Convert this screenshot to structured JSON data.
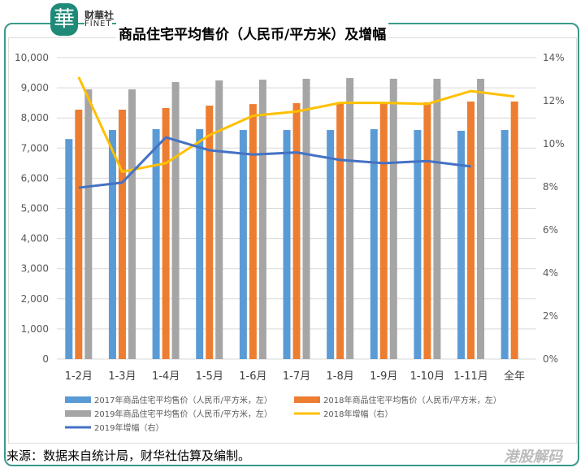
{
  "logo": {
    "mark": "華",
    "cn": "财華社",
    "en": "FINET"
  },
  "chart_data": {
    "type": "bar",
    "title": "商品住宅平均售价（人民币/平方米）及增幅",
    "categories": [
      "1-2月",
      "1-3月",
      "1-4月",
      "1-5月",
      "1-6月",
      "1-7月",
      "1-8月",
      "1-9月",
      "1-10月",
      "1-11月",
      "全年"
    ],
    "y_left": {
      "range": [
        0,
        10000
      ],
      "ticks": [
        "0",
        "1,000",
        "2,000",
        "3,000",
        "4,000",
        "5,000",
        "6,000",
        "7,000",
        "8,000",
        "9,000",
        "10,000"
      ]
    },
    "y_right": {
      "range": [
        0,
        14
      ],
      "ticks": [
        "0%",
        "2%",
        "4%",
        "6%",
        "8%",
        "10%",
        "12%",
        "14%"
      ]
    },
    "grid": true,
    "legend_position": "bottom",
    "series": [
      {
        "name": "2017年商品住宅平均售价（人民币/平方米，左）",
        "kind": "bar",
        "axis": "left",
        "color": "#5b9bd5",
        "values": [
          7300,
          7600,
          7630,
          7630,
          7600,
          7600,
          7600,
          7630,
          7600,
          7575,
          7600
        ]
      },
      {
        "name": "2018年商品住宅平均售价（人民币/平方米，左）",
        "kind": "bar",
        "axis": "left",
        "color": "#ed7d31",
        "values": [
          8275,
          8275,
          8330,
          8410,
          8460,
          8490,
          8520,
          8520,
          8520,
          8545,
          8545
        ]
      },
      {
        "name": "2019年商品住宅平均售价（人民币/平方米，左）",
        "kind": "bar",
        "axis": "left",
        "color": "#a5a5a5",
        "values": [
          8950,
          8950,
          9190,
          9245,
          9270,
          9300,
          9325,
          9300,
          9300,
          9300,
          null
        ]
      },
      {
        "name": "2018年增幅（右）",
        "kind": "line",
        "axis": "right",
        "color": "#ffc000",
        "values": [
          13.1,
          8.7,
          9.1,
          10.4,
          11.3,
          11.5,
          11.9,
          11.9,
          11.85,
          12.45,
          12.2
        ]
      },
      {
        "name": "2019年增幅（右）",
        "kind": "line",
        "axis": "right",
        "color": "#4472c4",
        "values": [
          7.96,
          8.2,
          10.3,
          9.7,
          9.5,
          9.6,
          9.25,
          9.1,
          9.2,
          8.95,
          null
        ]
      }
    ]
  },
  "source": "来源：数据来自统计局，财华社估算及编制。",
  "watermark": "港股解码"
}
